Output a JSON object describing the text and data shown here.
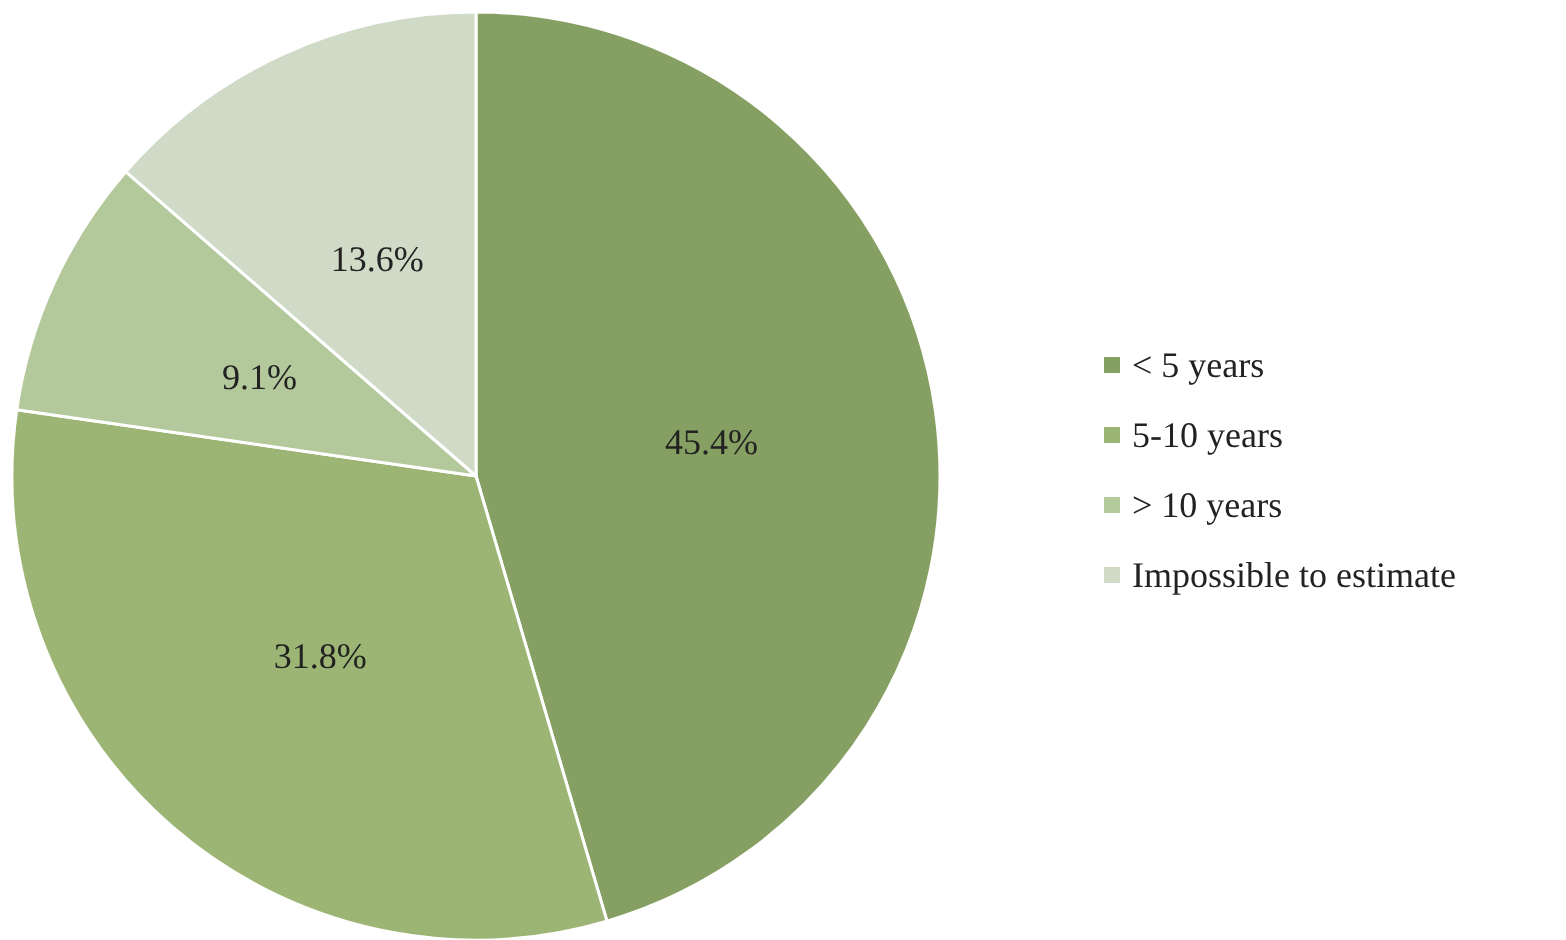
{
  "chart_data": {
    "type": "pie",
    "categories": [
      "< 5 years",
      "5-10 years",
      "> 10 years",
      "Impossible to estimate"
    ],
    "values": [
      45.4,
      31.8,
      9.1,
      13.6
    ],
    "colors": [
      "#86a063",
      "#9cb574",
      "#b4c99b",
      "#cfdac7"
    ],
    "value_labels": [
      "45.4%",
      "31.8%",
      "9.1%",
      "13.6%"
    ],
    "legend": "right"
  }
}
